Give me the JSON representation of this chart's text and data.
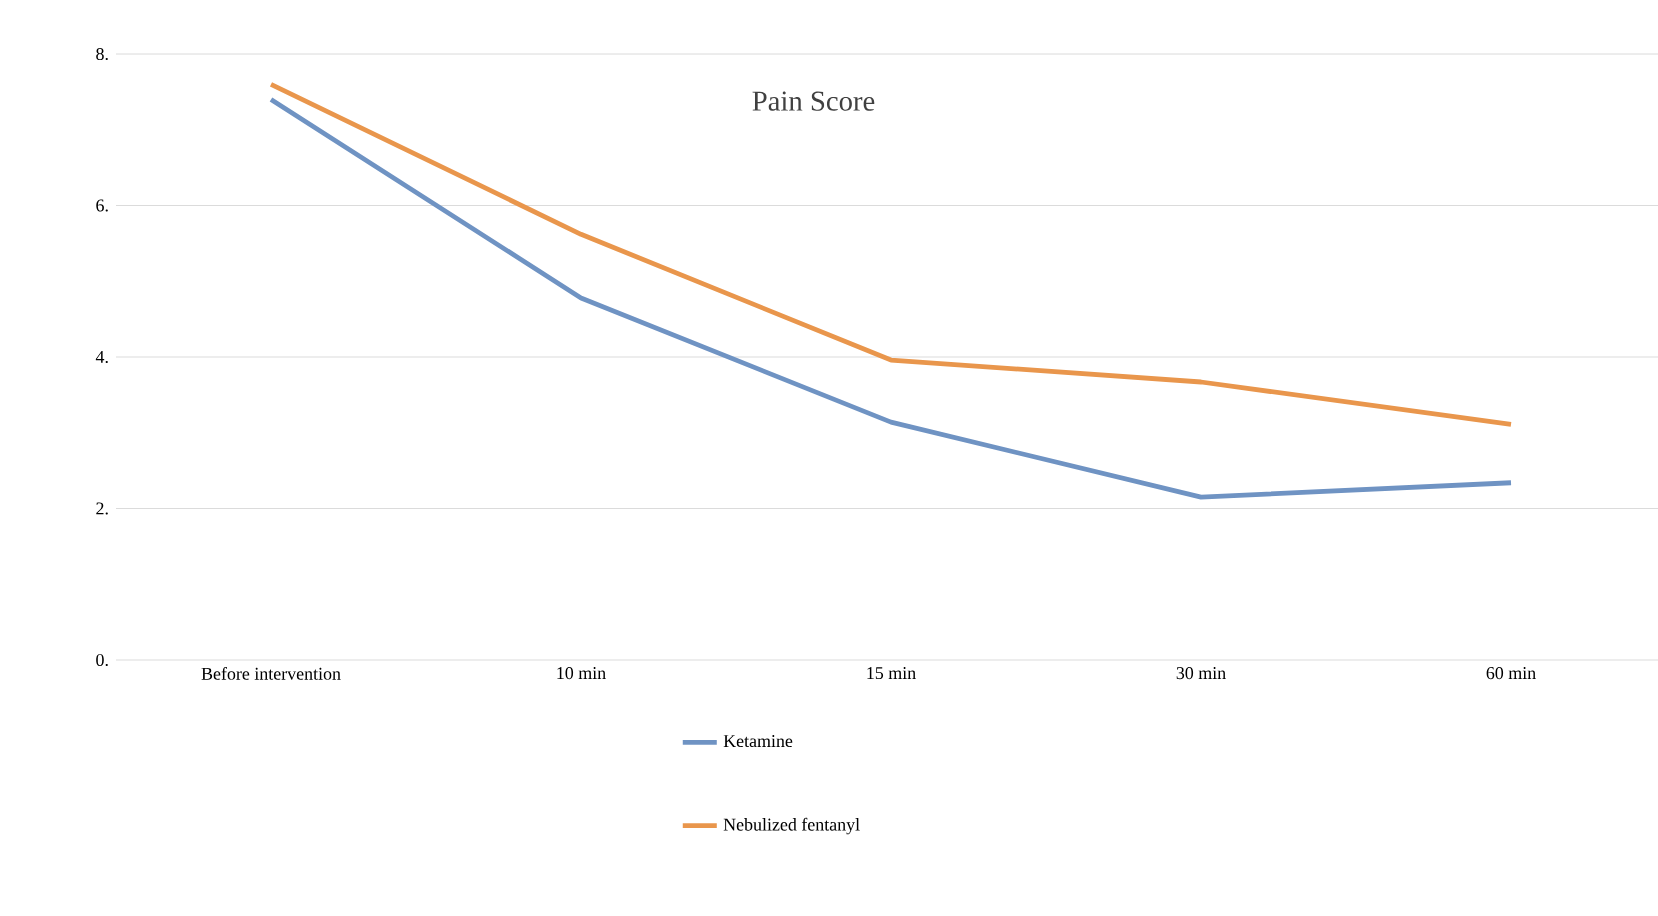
{
  "chart_data": {
    "type": "line",
    "title": "Pain Score",
    "categories": [
      "Before intervention",
      "10 min",
      "15 min",
      "30 min",
      "60 min"
    ],
    "series": [
      {
        "name": "Ketamine",
        "color": "#6f93c3",
        "values": [
          7.4,
          4.78,
          3.14,
          2.15,
          2.34
        ]
      },
      {
        "name": "Nebulized fentanyl",
        "color": "#e9964c",
        "values": [
          7.6,
          5.62,
          3.96,
          3.67,
          3.11
        ]
      }
    ],
    "ylim": [
      0,
      8
    ],
    "yticks": [
      {
        "value": 0,
        "label": "0."
      },
      {
        "value": 2,
        "label": "2."
      },
      {
        "value": 4,
        "label": "4."
      },
      {
        "value": 6,
        "label": "6."
      },
      {
        "value": 8,
        "label": "8."
      }
    ],
    "grid": "y",
    "legend": "bottom",
    "marker": "none",
    "line_style": "solid"
  }
}
